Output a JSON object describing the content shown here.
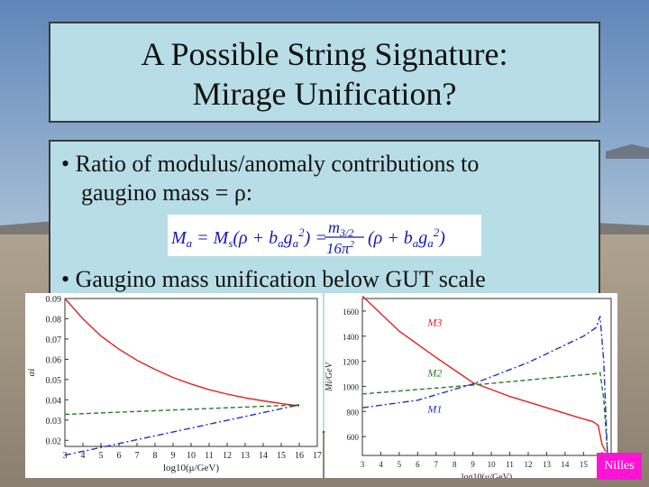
{
  "slide": {
    "title_line1": "A Possible String Signature:",
    "title_line2": "Mirage Unification?",
    "bullet1_line1": "• Ratio of modulus/anomaly contributions to",
    "bullet1_line2": "gaugino mass = ρ:",
    "bullet2": "• Gaugino mass unification below GUT scale",
    "formula": "Ma = Ms(ρ + ba ga²) = m3/2 / 16π² (ρ + ba ga²)",
    "author_badge": "Nilles"
  },
  "colors": {
    "title_bg": "#b7dde6",
    "badge_bg": "#ff14d6",
    "red": "#dd2222",
    "green": "#2a7a2a",
    "blue": "#2233bb"
  },
  "chart_data": [
    {
      "type": "line",
      "ylabel": "αi",
      "xlabel": "log10(μ/GeV)",
      "x_ticks": [
        "3",
        "4",
        "5",
        "6",
        "7",
        "8",
        "9",
        "10",
        "11",
        "12",
        "13",
        "14",
        "15",
        "16",
        "17"
      ],
      "y_ticks": [
        "0.02",
        "0.03",
        "0.04",
        "0.05",
        "0.06",
        "0.07",
        "0.08",
        "0.09"
      ],
      "xlim": [
        3,
        17
      ],
      "ylim": [
        0.017,
        0.09
      ],
      "series": [
        {
          "color": "red",
          "style": "solid",
          "x": [
            3,
            4,
            5,
            6,
            7,
            8,
            9,
            10,
            11,
            12,
            13,
            14,
            15,
            16
          ],
          "y": [
            0.09,
            0.08,
            0.0715,
            0.065,
            0.0595,
            0.055,
            0.051,
            0.0478,
            0.045,
            0.0428,
            0.041,
            0.0395,
            0.0382,
            0.037
          ]
        },
        {
          "color": "green",
          "style": "dashed",
          "x": [
            3,
            16
          ],
          "y": [
            0.0328,
            0.0375
          ]
        },
        {
          "color": "blue",
          "style": "dashdot",
          "x": [
            3,
            16
          ],
          "y": [
            0.0127,
            0.0375
          ]
        }
      ]
    },
    {
      "type": "line",
      "ylabel": "Mi/GeV",
      "xlabel": "log10(μ/GeV)",
      "x_ticks": [
        "3",
        "4",
        "5",
        "6",
        "7",
        "8",
        "9",
        "10",
        "11",
        "12",
        "13",
        "14",
        "15",
        "16"
      ],
      "y_ticks": [
        "600",
        "800",
        "1000",
        "1200",
        "1400",
        "1600"
      ],
      "xlim": [
        3,
        16.5
      ],
      "ylim": [
        450,
        1700
      ],
      "series_labels": [
        "M3",
        "M2",
        "M1"
      ],
      "series": [
        {
          "name": "M3",
          "color": "red",
          "style": "solid",
          "x": [
            3,
            5,
            7,
            9,
            11,
            13,
            15,
            15.5,
            15.8,
            16,
            16.2
          ],
          "y": [
            1720,
            1440,
            1230,
            1030,
            920,
            830,
            740,
            720,
            690,
            540,
            480
          ]
        },
        {
          "name": "M2",
          "color": "green",
          "style": "dashed",
          "x": [
            3,
            9,
            15.6,
            15.9,
            16.1,
            16.3
          ],
          "y": [
            940,
            1010,
            1100,
            1110,
            900,
            480
          ]
        },
        {
          "name": "M1",
          "color": "blue",
          "style": "dashdot",
          "x": [
            3,
            6,
            9,
            12,
            15,
            15.7,
            15.9,
            16.1,
            16.3
          ],
          "y": [
            830,
            890,
            1020,
            1190,
            1400,
            1470,
            1560,
            1200,
            460
          ]
        }
      ]
    }
  ]
}
